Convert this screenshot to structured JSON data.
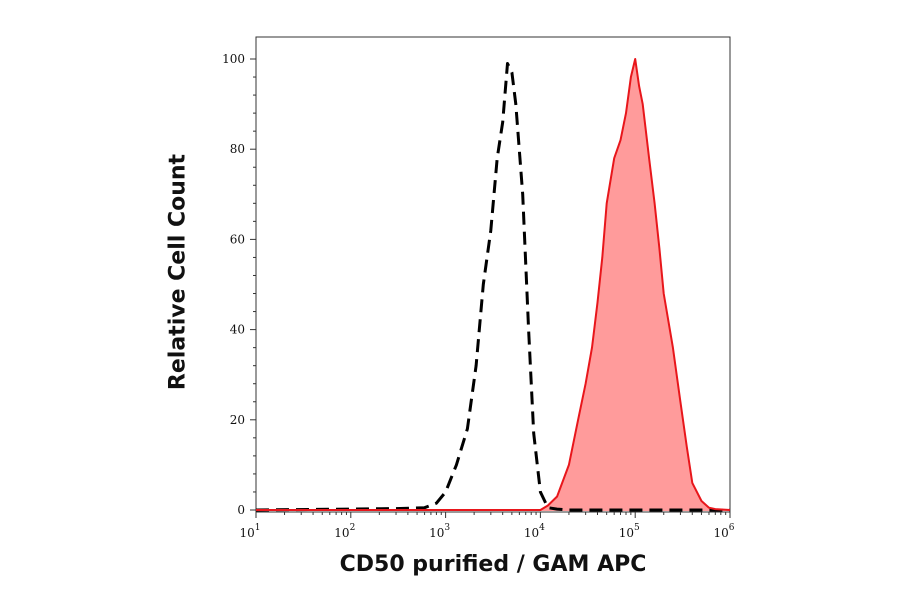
{
  "chart_data": {
    "type": "area",
    "xlabel": "CD50 purified / GAM APC",
    "ylabel": "Relative Cell Count",
    "x_scale": "log",
    "xlim": [
      10,
      1000000
    ],
    "ylim": [
      0,
      105
    ],
    "x_ticks": [
      {
        "base": "10",
        "exp": "1"
      },
      {
        "base": "10",
        "exp": "2"
      },
      {
        "base": "10",
        "exp": "3"
      },
      {
        "base": "10",
        "exp": "4"
      },
      {
        "base": "10",
        "exp": "5"
      },
      {
        "base": "10",
        "exp": "6"
      }
    ],
    "y_ticks": [
      "0",
      "20",
      "40",
      "60",
      "80",
      "100"
    ],
    "series": [
      {
        "style": "dashed",
        "color": "#000000",
        "fill": "none",
        "x": [
          10,
          300,
          600,
          800,
          1000,
          1300,
          1700,
          2100,
          2500,
          3000,
          3500,
          4000,
          4500,
          5000,
          5500,
          6500,
          7500,
          8500,
          10000,
          12000,
          15000,
          20000,
          1000000
        ],
        "y": [
          0,
          0.3,
          0.5,
          1.5,
          4,
          10,
          18,
          32,
          50,
          62,
          78,
          86,
          99,
          97,
          90,
          70,
          40,
          17,
          4,
          0.5,
          0.2,
          0,
          0
        ]
      },
      {
        "style": "solid",
        "color": "#e8161b",
        "fill": "#ff9b9b",
        "x": [
          10,
          10000,
          12000,
          15000,
          20000,
          25000,
          30000,
          35000,
          40000,
          45000,
          50000,
          60000,
          70000,
          80000,
          90000,
          100000,
          110000,
          120000,
          140000,
          160000,
          180000,
          200000,
          250000,
          300000,
          350000,
          400000,
          500000,
          600000,
          700000,
          1000000
        ],
        "y": [
          0,
          0,
          1,
          3,
          10,
          20,
          28,
          36,
          46,
          56,
          68,
          78,
          82,
          88,
          96,
          100,
          94,
          90,
          78,
          68,
          58,
          48,
          36,
          24,
          14,
          6,
          2,
          0.5,
          0.2,
          0
        ]
      }
    ]
  }
}
